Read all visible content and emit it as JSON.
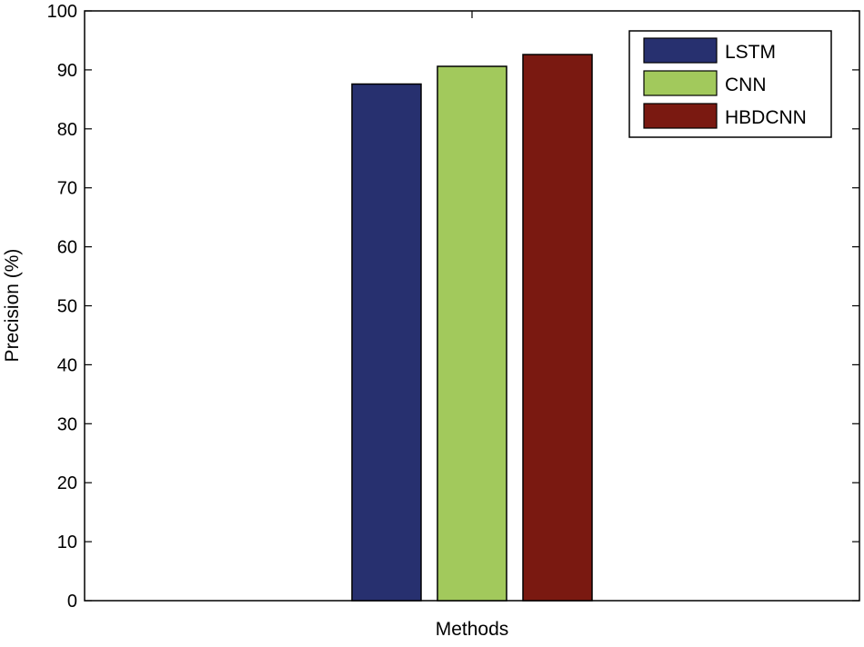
{
  "chart_data": {
    "type": "bar",
    "categories": [
      ""
    ],
    "series": [
      {
        "name": "LSTM",
        "values": [
          87.6
        ],
        "color": "#27306f"
      },
      {
        "name": "CNN",
        "values": [
          90.6
        ],
        "color": "#a2c95c"
      },
      {
        "name": "HBDCNN",
        "values": [
          92.6
        ],
        "color": "#7a1911"
      }
    ],
    "title": "",
    "xlabel": "Methods",
    "ylabel": "Precision (%)",
    "ylim": [
      0,
      100
    ],
    "yticks": [
      "0",
      "10",
      "20",
      "30",
      "40",
      "50",
      "60",
      "70",
      "80",
      "90",
      "100"
    ],
    "grid": false,
    "legend_position": "top-right"
  }
}
